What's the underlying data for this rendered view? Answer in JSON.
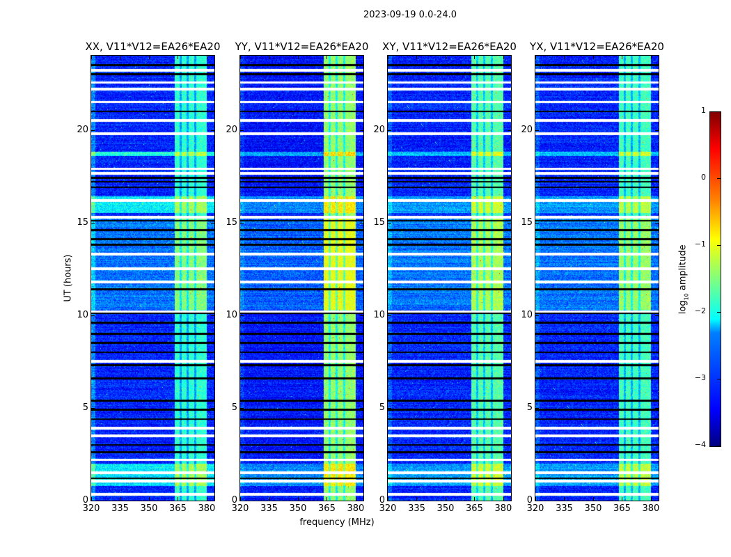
{
  "chart_data": {
    "type": "heatmap",
    "title": "2023-09-19 0.0-24.0",
    "xlabel": "frequency (MHz)",
    "ylabel": "UT (hours)",
    "xlim": [
      320,
      384
    ],
    "ylim": [
      0,
      24
    ],
    "xticks": [
      "320",
      "335",
      "350",
      "365",
      "380"
    ],
    "xtick_values": [
      320,
      335,
      350,
      365,
      380
    ],
    "yticks": [
      "0",
      "5",
      "10",
      "15",
      "20"
    ],
    "ytick_values": [
      0,
      5,
      10,
      15,
      20
    ],
    "colorbar": {
      "label": "log10 amplitude",
      "label_main": "log",
      "label_sub": "10",
      "label_rest": " amplitude",
      "vmin": -4,
      "vmax": 1,
      "ticks": [
        "1",
        "0",
        "−1",
        "−2",
        "−3",
        "−4"
      ],
      "tick_values": [
        1,
        0,
        -1,
        -2,
        -3,
        -4
      ],
      "colormap": "jet"
    },
    "panels": [
      {
        "title": "XX, V11*V12=EA26*EA20",
        "base": -3.2,
        "band_level": -1.9,
        "left_edge_boost": 0.5
      },
      {
        "title": "YY, V11*V12=EA26*EA20",
        "base": -3.3,
        "band_level": -1.4,
        "left_edge_boost": 0.2
      },
      {
        "title": "XY, V11*V12=EA26*EA20",
        "base": -3.2,
        "band_level": -1.7,
        "left_edge_boost": 0.3
      },
      {
        "title": "YX, V11*V12=EA26*EA20",
        "base": -3.2,
        "band_level": -1.8,
        "left_edge_boost": 0.3
      }
    ],
    "band_mhz": [
      363.5,
      380
    ],
    "band_gaps_mhz": [
      366.5,
      370,
      374
    ],
    "bright_hours": [
      [
        0.8,
        2.0,
        1.0
      ],
      [
        10.3,
        15.3,
        0.7
      ],
      [
        15.5,
        16.4,
        1.0
      ],
      [
        18.6,
        18.8,
        1.2
      ]
    ],
    "flagged_white_hours": [
      0.35,
      1.05,
      1.5,
      2.2,
      3.5,
      3.9,
      7.5,
      10.2,
      11.8,
      12.5,
      13.3,
      15.3,
      16.2,
      17.65,
      17.9,
      19.8,
      20.5,
      21.5,
      22.2,
      22.55,
      23.2
    ],
    "flagged_black_hours": [
      1.2,
      2.6,
      3.0,
      4.4,
      4.9,
      5.4,
      6.6,
      7.3,
      8.0,
      8.5,
      9.0,
      9.6,
      10.1,
      11.4,
      13.8,
      14.1,
      14.6,
      15.1,
      16.9,
      17.2,
      17.4,
      21.0,
      23.0,
      23.5
    ]
  }
}
